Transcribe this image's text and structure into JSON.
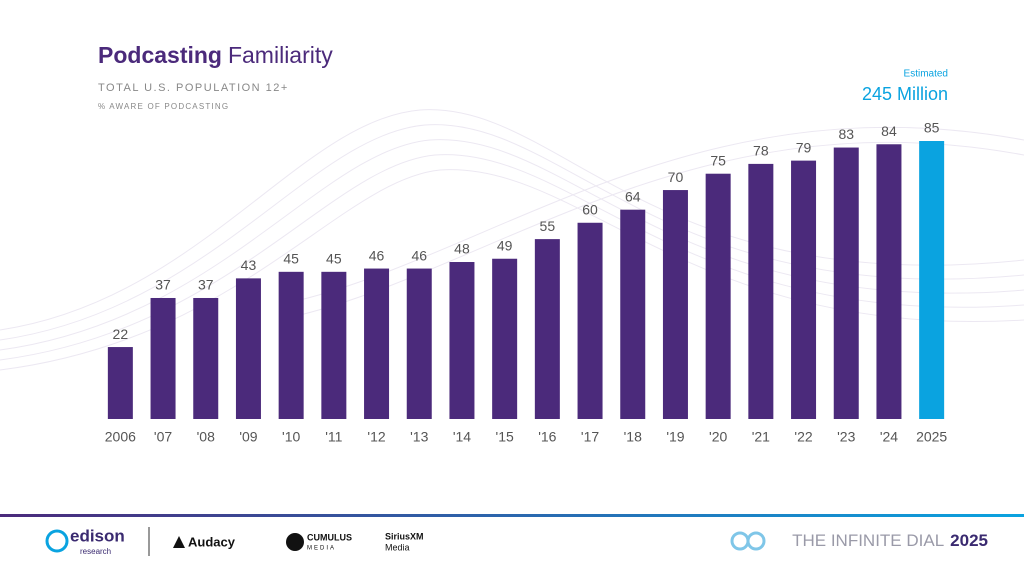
{
  "chart_data": {
    "type": "bar",
    "title": {
      "bold": "Podcasting",
      "regular": "Familiarity"
    },
    "subtitle": "TOTAL U.S. POPULATION 12+",
    "measure": "% AWARE OF PODCASTING",
    "annotation": {
      "label": "Estimated",
      "text": "245 Million"
    },
    "categories": [
      "2006",
      "'07",
      "'08",
      "'09",
      "'10",
      "'11",
      "'12",
      "'13",
      "'14",
      "'15",
      "'16",
      "'17",
      "'18",
      "'19",
      "'20",
      "'21",
      "'22",
      "'23",
      "'24",
      "2025"
    ],
    "values": [
      22,
      37,
      37,
      43,
      45,
      45,
      46,
      46,
      48,
      49,
      55,
      60,
      64,
      70,
      75,
      78,
      79,
      83,
      84,
      85
    ],
    "colors": [
      "#4b2a7b",
      "#4b2a7b",
      "#4b2a7b",
      "#4b2a7b",
      "#4b2a7b",
      "#4b2a7b",
      "#4b2a7b",
      "#4b2a7b",
      "#4b2a7b",
      "#4b2a7b",
      "#4b2a7b",
      "#4b2a7b",
      "#4b2a7b",
      "#4b2a7b",
      "#4b2a7b",
      "#4b2a7b",
      "#4b2a7b",
      "#4b2a7b",
      "#4b2a7b",
      "#0aa3e0"
    ]
  },
  "footer": {
    "logos": [
      "edison",
      "research",
      "Audacy",
      "CUMULUS",
      "MEDIA",
      "SiriusXM",
      "Media"
    ],
    "brand": {
      "prefix": "THE INFINITE DIAL",
      "year": "2025"
    }
  }
}
